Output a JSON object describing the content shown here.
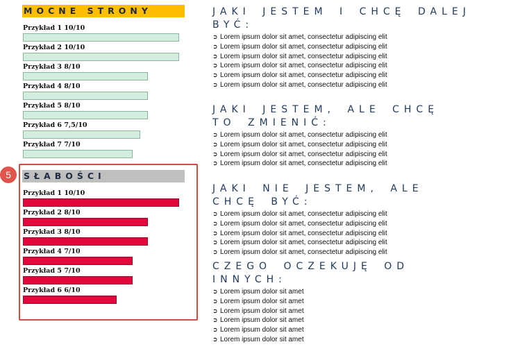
{
  "strengths": {
    "title": "MOCNE STRONY",
    "items": [
      {
        "label": "Przykład 1 10/10",
        "score": 10
      },
      {
        "label": "Przykład 2 10/10",
        "score": 10
      },
      {
        "label": "Przykład 3 8/10",
        "score": 8
      },
      {
        "label": "Przykład 4 8/10",
        "score": 8
      },
      {
        "label": "Przykład 5 8/10",
        "score": 8
      },
      {
        "label": "Przykład 6 7,5/10",
        "score": 7.5
      },
      {
        "label": "Przykład 7 7/10",
        "score": 7
      }
    ]
  },
  "weaknesses": {
    "title": "SŁABOŚCI",
    "items": [
      {
        "label": "Przykład 1 10/10",
        "score": 10
      },
      {
        "label": "Przykład 2 8/10",
        "score": 8
      },
      {
        "label": "Przykład 3 8/10",
        "score": 8
      },
      {
        "label": "Przykład 4 7/10",
        "score": 7
      },
      {
        "label": "Przykład 5 7/10",
        "score": 7
      },
      {
        "label": "Przykład 6 6/10",
        "score": 6
      }
    ]
  },
  "step_badge": "5",
  "bullet_glyph": "➲",
  "sections": [
    {
      "title": "JAKI JESTEM I CHCĘ DALEJ BYĆ:",
      "items": [
        "Lorem ipsum dolor sit amet, consectetur adipiscing elit",
        "Lorem ipsum dolor sit amet, consectetur adipiscing elit",
        "Lorem ipsum dolor sit amet, consectetur adipiscing elit",
        "Lorem ipsum dolor sit amet, consectetur adipiscing elit",
        "Lorem ipsum dolor sit amet, consectetur adipiscing elit",
        "Lorem ipsum dolor sit amet, consectetur adipiscing elit"
      ]
    },
    {
      "title": "JAKI JESTEM, ALE CHCĘ TO ZMIENIĆ:",
      "items": [
        "Lorem ipsum dolor sit amet, consectetur adipiscing elit",
        "Lorem ipsum dolor sit amet, consectetur adipiscing elit",
        "Lorem ipsum dolor sit amet, consectetur adipiscing elit",
        "Lorem ipsum dolor sit amet, consectetur adipiscing elit"
      ]
    },
    {
      "title": "JAKI NIE JESTEM, ALE CHCĘ BYĆ:",
      "items": [
        "Lorem ipsum dolor sit amet, consectetur adipiscing elit",
        "Lorem ipsum dolor sit amet, consectetur adipiscing elit",
        "Lorem ipsum dolor sit amet, consectetur adipiscing elit",
        "Lorem ipsum dolor sit amet, consectetur adipiscing elit",
        "Lorem ipsum dolor sit amet, consectetur adipiscing elit"
      ]
    },
    {
      "title": "CZEGO OCZEKUJĘ OD INNYCH:",
      "items": [
        "Lorem ipsum dolor sit amet",
        "Lorem ipsum dolor sit amet",
        "Lorem ipsum dolor sit amet",
        "Lorem ipsum dolor sit amet",
        "Lorem ipsum dolor sit amet",
        "Lorem ipsum dolor sit amet"
      ]
    }
  ],
  "colors": {
    "strengths_header": "#ffbf00",
    "weaknesses_header": "#bfbfbf",
    "strength_bar": "#d3eddf",
    "weakness_bar": "#e2063d",
    "highlight": "#d94a44",
    "heading_text": "#1f3a5f"
  },
  "icons": {
    "bullet": "arrow-bullet-icon"
  }
}
